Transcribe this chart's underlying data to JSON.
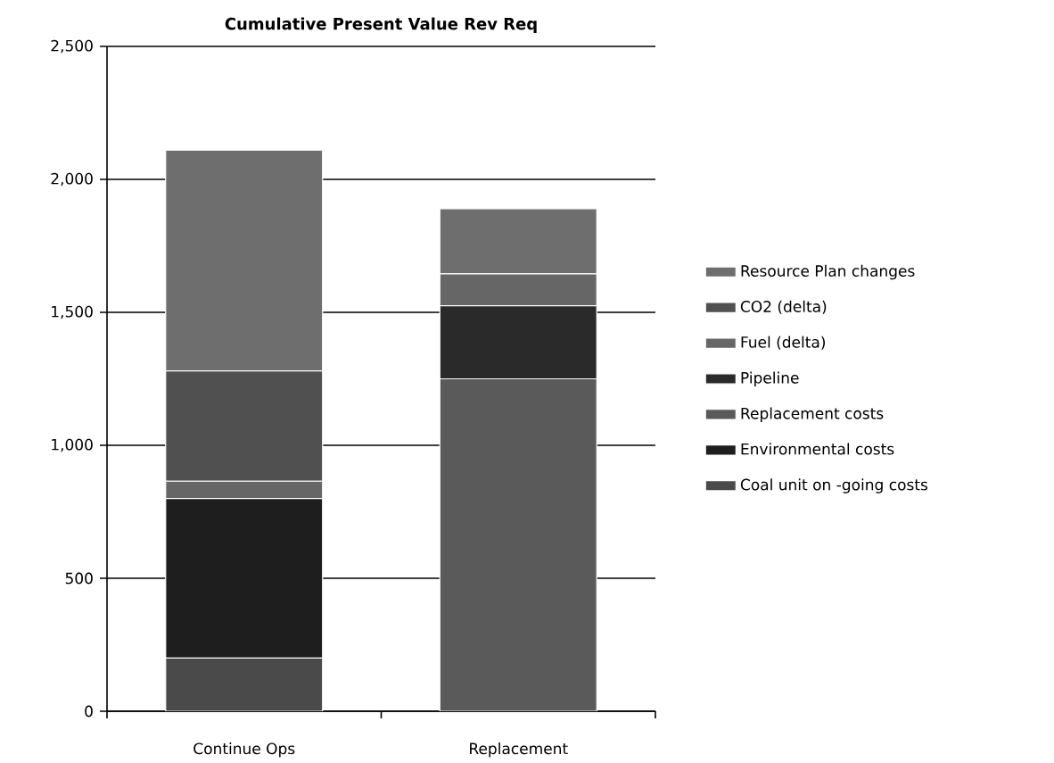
{
  "chart_data": {
    "type": "bar",
    "title": "Cumulative Present Value Rev Req",
    "categories": [
      "Continue Ops",
      "Replacement"
    ],
    "stacked": true,
    "series": [
      {
        "name": "Coal unit on -going costs",
        "color": "#4a4a4a",
        "values": [
          200,
          0
        ]
      },
      {
        "name": "Environmental costs",
        "color": "#1e1e1e",
        "values": [
          600,
          0
        ]
      },
      {
        "name": "Replacement costs",
        "color": "#5a5a5a",
        "values": [
          0,
          1250
        ]
      },
      {
        "name": "Pipeline",
        "color": "#2a2a2a",
        "values": [
          0,
          275
        ]
      },
      {
        "name": "Fuel (delta)",
        "color": "#666666",
        "values": [
          65,
          120
        ]
      },
      {
        "name": "CO2 (delta)",
        "color": "#505050",
        "values": [
          415,
          0
        ]
      },
      {
        "name": "Resource Plan changes",
        "color": "#6e6e6e",
        "values": [
          830,
          245
        ]
      }
    ],
    "ylim": [
      0,
      2500
    ],
    "yticks": [
      0,
      {
        "value": 500,
        "label": "500"
      },
      {
        "value": 1000,
        "label": "1,000"
      },
      {
        "value": 1500,
        "label": "1,500"
      },
      {
        "value": 2000,
        "label": "2,000"
      },
      {
        "value": 2500,
        "label": "2,500"
      }
    ],
    "grid": "y",
    "legend": "right"
  }
}
